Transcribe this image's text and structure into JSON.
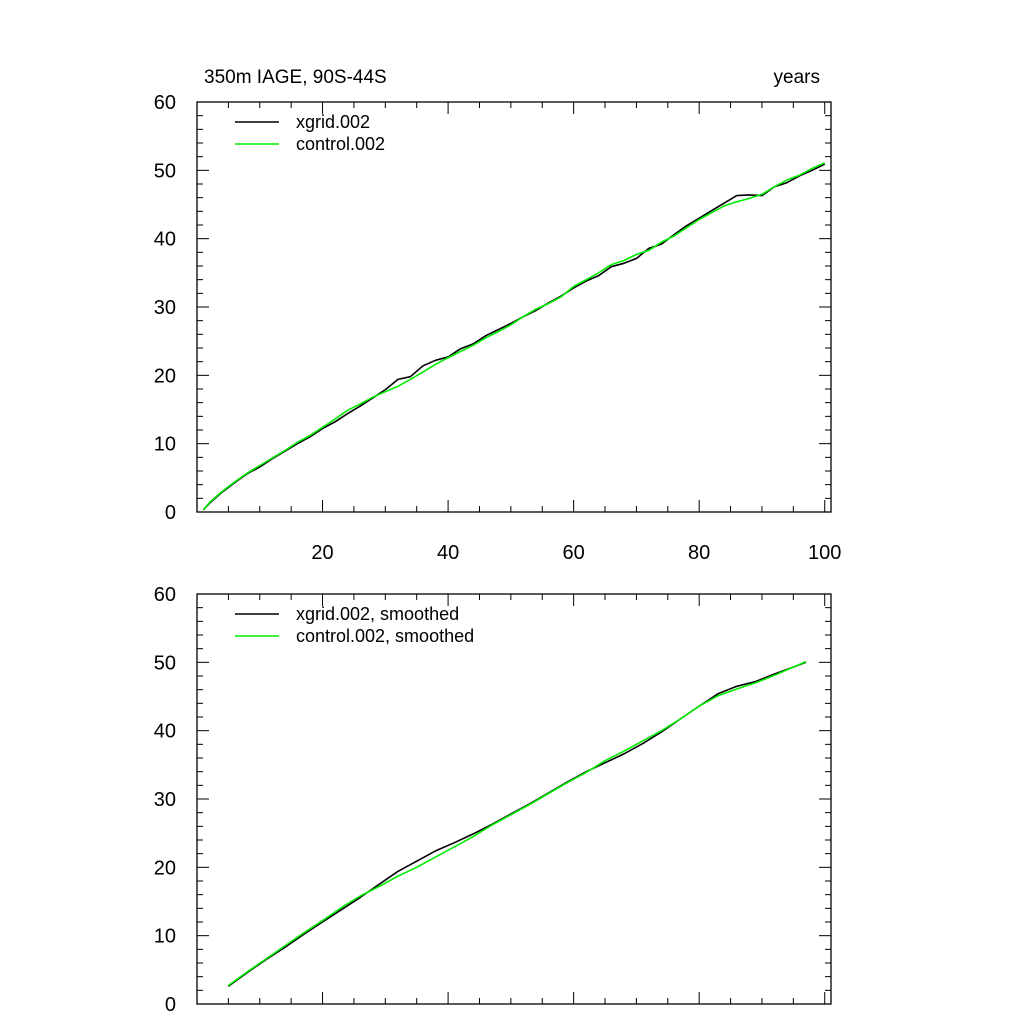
{
  "header": {
    "left_title": "350m IAGE, 90S-44S",
    "right_title": "years"
  },
  "colors": {
    "xgrid": "#000000",
    "control": "#00ee00",
    "axis": "#000000",
    "background": "#ffffff"
  },
  "chart_data": [
    {
      "type": "line",
      "title": "350m IAGE, 90S-44S",
      "units": "years",
      "xlim": [
        0,
        101
      ],
      "ylim": [
        0,
        60
      ],
      "xticks": [
        20,
        40,
        60,
        80,
        100
      ],
      "yticks": [
        0,
        10,
        20,
        30,
        40,
        50,
        60
      ],
      "grid": false,
      "legend_position": "top-left",
      "series": [
        {
          "name": "xgrid.002",
          "color": "#000000",
          "x": [
            1,
            2,
            4,
            6,
            8,
            10,
            12,
            14,
            16,
            18,
            20,
            22,
            24,
            26,
            28,
            30,
            32,
            34,
            36,
            38,
            40,
            42,
            44,
            46,
            48,
            50,
            52,
            54,
            56,
            58,
            60,
            62,
            64,
            66,
            68,
            70,
            72,
            74,
            76,
            78,
            80,
            82,
            84,
            86,
            88,
            90,
            92,
            94,
            96,
            98,
            100
          ],
          "y": [
            0.3,
            1.3,
            2.9,
            4.3,
            5.6,
            6.6,
            7.8,
            8.9,
            10.0,
            11.0,
            12.2,
            13.2,
            14.4,
            15.5,
            16.7,
            17.9,
            19.4,
            19.8,
            21.4,
            22.2,
            22.7,
            23.9,
            24.6,
            25.8,
            26.7,
            27.6,
            28.6,
            29.5,
            30.6,
            31.6,
            32.8,
            33.8,
            34.6,
            35.9,
            36.4,
            37.1,
            38.6,
            39.2,
            40.6,
            41.9,
            43.0,
            44.1,
            45.2,
            46.3,
            46.4,
            46.3,
            47.6,
            48.2,
            49.2,
            50.0,
            50.9
          ]
        },
        {
          "name": "control.002",
          "color": "#00ee00",
          "x": [
            1,
            2,
            4,
            6,
            8,
            10,
            12,
            14,
            16,
            18,
            20,
            22,
            24,
            26,
            28,
            30,
            32,
            34,
            36,
            38,
            40,
            42,
            44,
            46,
            48,
            50,
            52,
            54,
            56,
            58,
            60,
            62,
            64,
            66,
            68,
            70,
            72,
            74,
            76,
            78,
            80,
            82,
            84,
            86,
            88,
            90,
            92,
            94,
            96,
            98,
            100
          ],
          "y": [
            0.3,
            1.4,
            3.0,
            4.4,
            5.7,
            6.8,
            7.9,
            9.0,
            10.2,
            11.2,
            12.4,
            13.6,
            14.9,
            15.8,
            16.8,
            17.6,
            18.4,
            19.4,
            20.5,
            21.6,
            22.6,
            23.5,
            24.4,
            25.5,
            26.4,
            27.4,
            28.6,
            29.7,
            30.5,
            31.5,
            33.0,
            34.0,
            35.0,
            36.2,
            36.8,
            37.7,
            38.3,
            39.5,
            40.4,
            41.6,
            42.8,
            43.8,
            44.8,
            45.4,
            45.9,
            46.5,
            47.6,
            48.6,
            49.3,
            50.3,
            51.1
          ]
        }
      ]
    },
    {
      "type": "line",
      "xlim": [
        0,
        101
      ],
      "ylim": [
        0,
        60
      ],
      "xticks": [
        20,
        40,
        60,
        80,
        100
      ],
      "yticks": [
        0,
        10,
        20,
        30,
        40,
        50,
        60
      ],
      "grid": false,
      "legend_position": "top-left",
      "series": [
        {
          "name": "xgrid.002, smoothed",
          "color": "#000000",
          "x": [
            5,
            8,
            11,
            14,
            17,
            20,
            23,
            26,
            29,
            32,
            35,
            38,
            41,
            44,
            47,
            50,
            53,
            56,
            59,
            62,
            65,
            68,
            71,
            74,
            77,
            80,
            83,
            86,
            89,
            92,
            95,
            97
          ],
          "y": [
            2.6,
            4.6,
            6.5,
            8.3,
            10.2,
            12.0,
            13.8,
            15.6,
            17.5,
            19.4,
            20.9,
            22.4,
            23.6,
            24.9,
            26.3,
            27.8,
            29.3,
            30.9,
            32.5,
            34.0,
            35.3,
            36.6,
            38.1,
            39.8,
            41.7,
            43.6,
            45.4,
            46.5,
            47.2,
            48.3,
            49.3,
            50.0
          ]
        },
        {
          "name": "control.002, smoothed",
          "color": "#00ee00",
          "x": [
            5,
            8,
            11,
            14,
            17,
            20,
            23,
            26,
            29,
            32,
            35,
            38,
            41,
            44,
            47,
            50,
            53,
            56,
            59,
            62,
            65,
            68,
            71,
            74,
            77,
            80,
            83,
            86,
            89,
            92,
            95,
            97
          ],
          "y": [
            2.7,
            4.7,
            6.6,
            8.5,
            10.4,
            12.2,
            14.1,
            15.8,
            17.2,
            18.7,
            20.0,
            21.5,
            23.0,
            24.5,
            26.2,
            27.7,
            29.2,
            30.8,
            32.4,
            33.9,
            35.6,
            37.0,
            38.5,
            40.0,
            41.7,
            43.6,
            45.1,
            46.1,
            47.0,
            48.1,
            49.3,
            50.1
          ]
        }
      ]
    }
  ]
}
